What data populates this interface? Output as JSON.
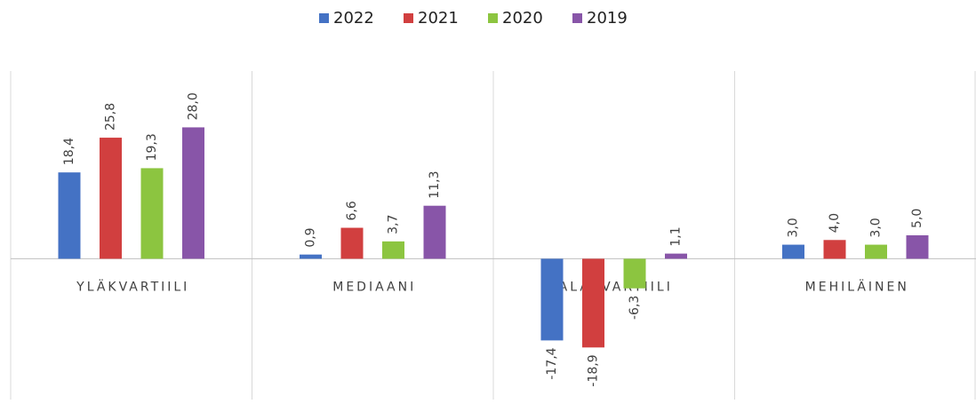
{
  "chart_data": {
    "type": "bar",
    "categories": [
      "YLÄKVARTIILI",
      "MEDIAANI",
      "ALAKVARTIILI",
      "MEHILÄINEN"
    ],
    "series": [
      {
        "name": "2022",
        "color": "#4472c4",
        "values": [
          18.4,
          0.9,
          -17.4,
          3.0
        ],
        "value_labels": [
          "18,4",
          "0,9",
          "-17,4",
          "3,0"
        ]
      },
      {
        "name": "2021",
        "color": "#d13f3f",
        "values": [
          25.8,
          6.6,
          -18.9,
          4.0
        ],
        "value_labels": [
          "25,8",
          "6,6",
          "-18,9",
          "4,0"
        ]
      },
      {
        "name": "2020",
        "color": "#8cc540",
        "values": [
          19.3,
          3.7,
          -6.3,
          3.0
        ],
        "value_labels": [
          "19,3",
          "3,7",
          "-6,3",
          "3,0"
        ]
      },
      {
        "name": "2019",
        "color": "#8855a8",
        "values": [
          28.0,
          11.3,
          1.1,
          5.0
        ],
        "value_labels": [
          "28,0",
          "11,3",
          "1,1",
          "5,0"
        ]
      }
    ],
    "ylim": [
      -30,
      40
    ]
  }
}
